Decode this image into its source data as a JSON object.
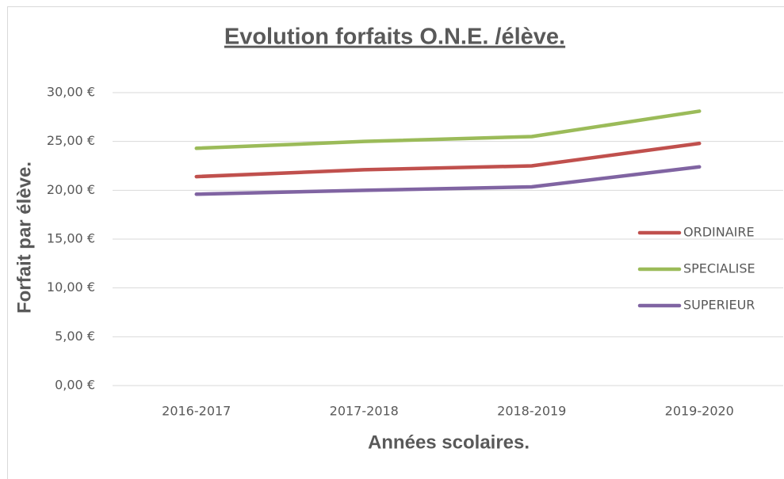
{
  "chart_data": {
    "type": "line",
    "title": "Evolution forfaits O.N.E. /élève.",
    "x_label": "Années scolaires.",
    "y_label": "Forfait par élève.",
    "categories": [
      "2016-2017",
      "2017-2018",
      "2018-2019",
      "2019-2020"
    ],
    "series": [
      {
        "name": "ORDINAIRE",
        "color": "#c0504d",
        "values": [
          21.4,
          22.1,
          22.5,
          24.8
        ]
      },
      {
        "name": "SPECIALISE",
        "color": "#9bbb59",
        "values": [
          24.3,
          25.0,
          25.5,
          28.1
        ]
      },
      {
        "name": "SUPERIEUR",
        "color": "#8064a2",
        "values": [
          19.6,
          20.0,
          20.35,
          22.4
        ]
      }
    ],
    "ylim": [
      0,
      30
    ],
    "yticks": [
      {
        "value": 0,
        "label": "0,00 €"
      },
      {
        "value": 5,
        "label": "5,00 €"
      },
      {
        "value": 10,
        "label": "10,00 €"
      },
      {
        "value": 15,
        "label": "15,00 €"
      },
      {
        "value": 20,
        "label": "20,00 €"
      },
      {
        "value": 25,
        "label": "25,00 €"
      },
      {
        "value": 30,
        "label": "30,00 €"
      }
    ],
    "grid": true,
    "legend": "right"
  }
}
